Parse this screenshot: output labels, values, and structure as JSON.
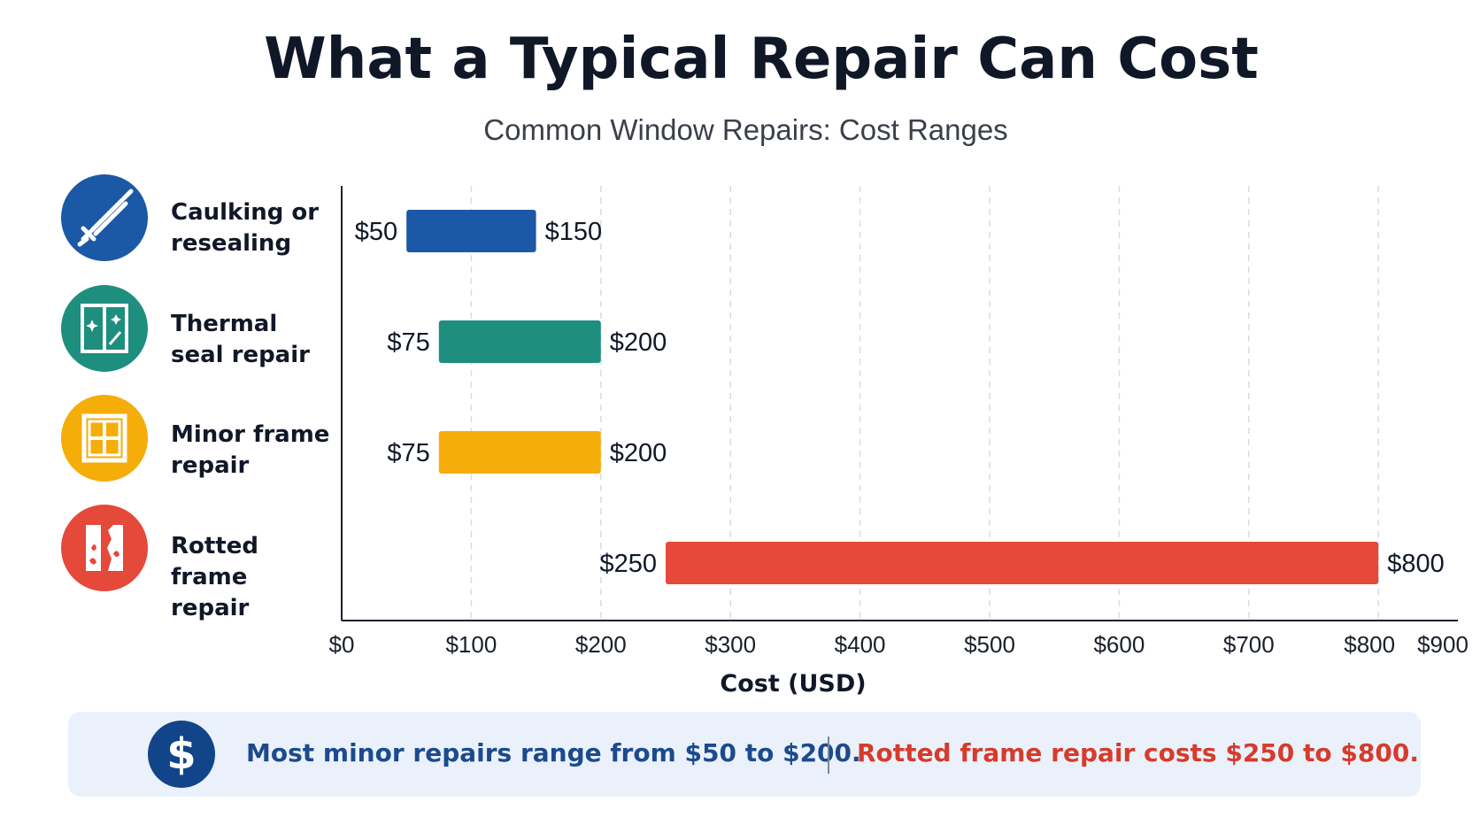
{
  "header": {
    "title": "What a Typical Repair Can Cost",
    "subtitle": "Common Window Repairs: Cost Ranges"
  },
  "rows": [
    {
      "label": "Caulking or resealing",
      "icon": "caulk-gun-icon",
      "color": "#1b58a5"
    },
    {
      "label": "Thermal seal repair",
      "icon": "window-sparkle-icon",
      "color": "#1e8e7e"
    },
    {
      "label": "Minor frame repair",
      "icon": "window-frame-icon",
      "color": "#f5ad0a"
    },
    {
      "label": "Rotted frame repair",
      "icon": "rotted-frame-icon",
      "color": "#e4493a"
    }
  ],
  "chart_data": {
    "type": "bar",
    "orientation": "horizontal-range",
    "title": "What a Typical Repair Can Cost",
    "subtitle": "Common Window Repairs: Cost Ranges",
    "xlabel": "Cost (USD)",
    "ylabel": "",
    "xlim": [
      0,
      900
    ],
    "x_ticks": [
      0,
      100,
      200,
      300,
      400,
      500,
      600,
      700,
      800,
      900
    ],
    "x_tick_labels": [
      "$0",
      "$100",
      "$200",
      "$300",
      "$400",
      "$500",
      "$600",
      "$700",
      "$800",
      "$900"
    ],
    "grid": "vertical dashed",
    "categories": [
      "Caulking or resealing",
      "Thermal seal repair",
      "Minor frame repair",
      "Rotted frame repair"
    ],
    "ranges": [
      {
        "category": "Caulking or resealing",
        "low": 50,
        "high": 150,
        "low_label": "$50",
        "high_label": "$150",
        "color": "#1b58a5"
      },
      {
        "category": "Thermal seal repair",
        "low": 75,
        "high": 200,
        "low_label": "$75",
        "high_label": "$200",
        "color": "#1e8e7e"
      },
      {
        "category": "Minor frame repair",
        "low": 75,
        "high": 200,
        "low_label": "$75",
        "high_label": "$200",
        "color": "#f5ad0a"
      },
      {
        "category": "Rotted frame repair",
        "low": 250,
        "high": 800,
        "low_label": "$250",
        "high_label": "$800",
        "color": "#e4493a"
      }
    ]
  },
  "banner": {
    "symbol": "$",
    "note_minor": "Most minor repairs range from $50 to $200.",
    "note_rotted": "Rotted frame repair costs $250 to $800.",
    "color_minor": "#1c4a8c",
    "color_rotted": "#d63b2c"
  }
}
